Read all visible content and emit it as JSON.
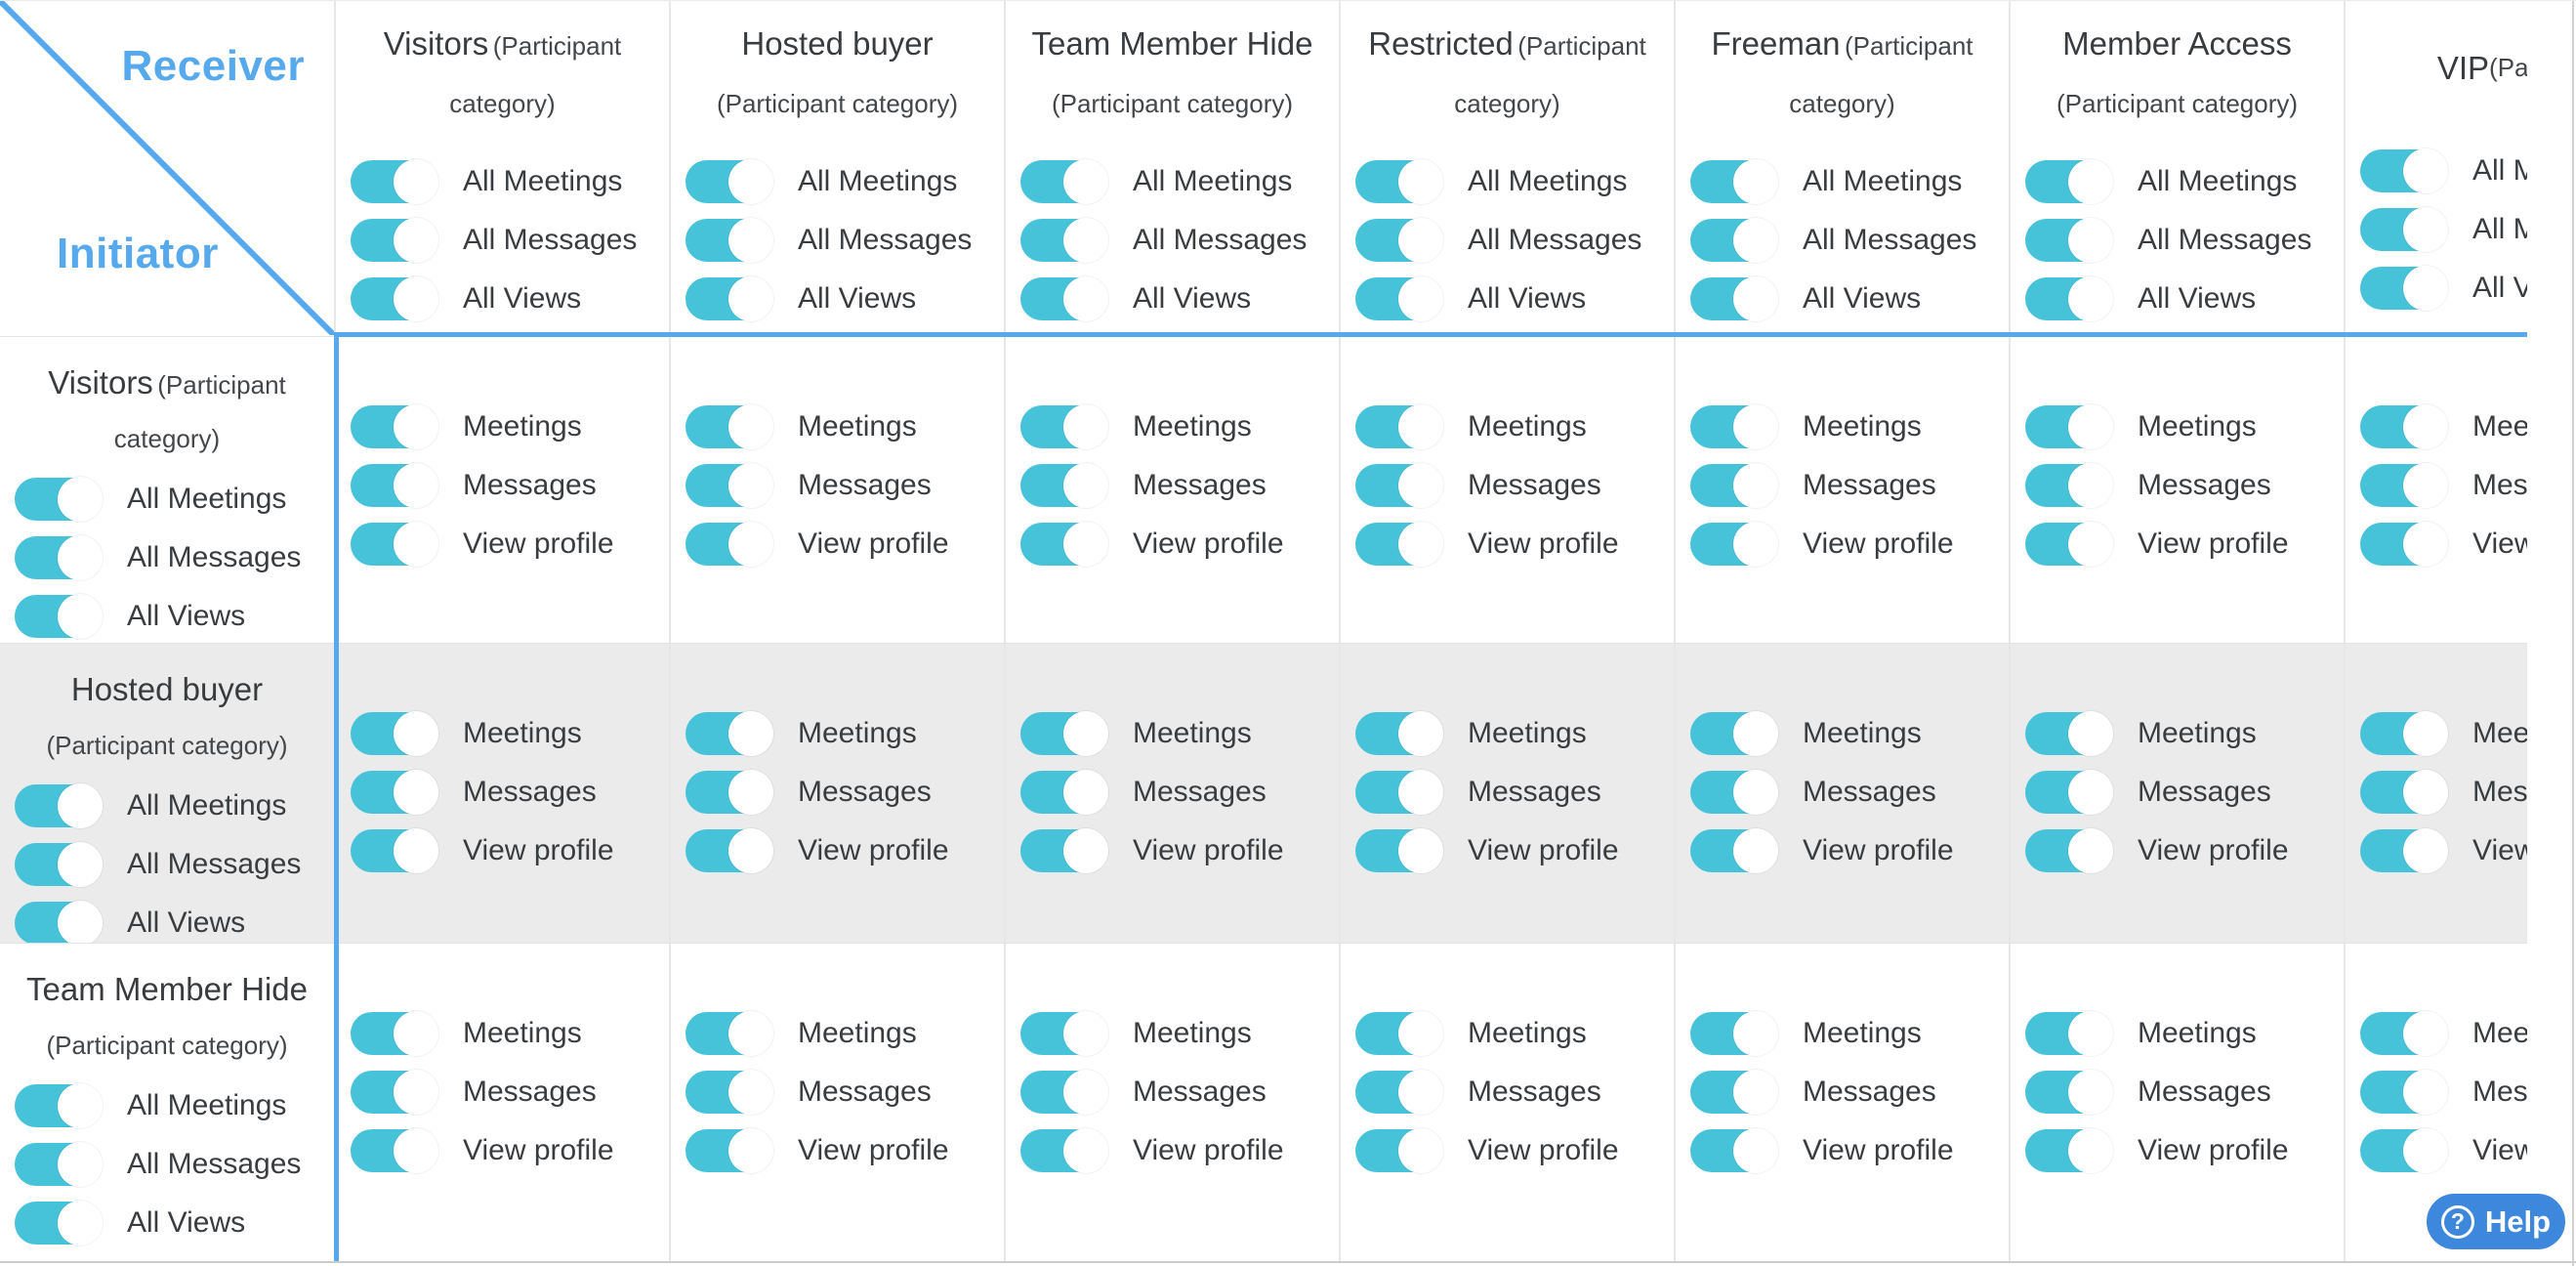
{
  "corner": {
    "receiver_label": "Receiver",
    "initiator_label": "Initiator"
  },
  "receivers": [
    {
      "name": "Visitors",
      "type": "(Participant category)",
      "single_line": false
    },
    {
      "name": "Hosted buyer",
      "type": "(Participant category)",
      "single_line": false
    },
    {
      "name": "Team Member Hide",
      "type": "(Participant category)",
      "single_line": false
    },
    {
      "name": "Restricted",
      "type": "(Participant category)",
      "single_line": false
    },
    {
      "name": "Freeman",
      "type": "(Participant category)",
      "single_line": false
    },
    {
      "name": "Member Access",
      "type": "(Participant category)",
      "single_line": false
    },
    {
      "name": "VIP",
      "type": "(Participant category)",
      "single_line": true
    }
  ],
  "initiators": [
    {
      "name": "Visitors",
      "type": "(Participant category)"
    },
    {
      "name": "Hosted buyer",
      "type": "(Participant category)"
    },
    {
      "name": "Team Member Hide",
      "type": "(Participant category)"
    }
  ],
  "header_toggle_labels": [
    "All Meetings",
    "All Messages",
    "All Views"
  ],
  "cell_toggle_labels": [
    "Meetings",
    "Messages",
    "View profile"
  ],
  "all_toggles_state": "on",
  "help_button": {
    "label": "Help",
    "icon_glyph": "?"
  },
  "colors": {
    "toggle_on": "#47C3D9",
    "divider_blue": "#55A9EC",
    "help_blue": "#3D87DC",
    "shaded_row": "#EBEBEB",
    "text": "#3A3D40"
  }
}
